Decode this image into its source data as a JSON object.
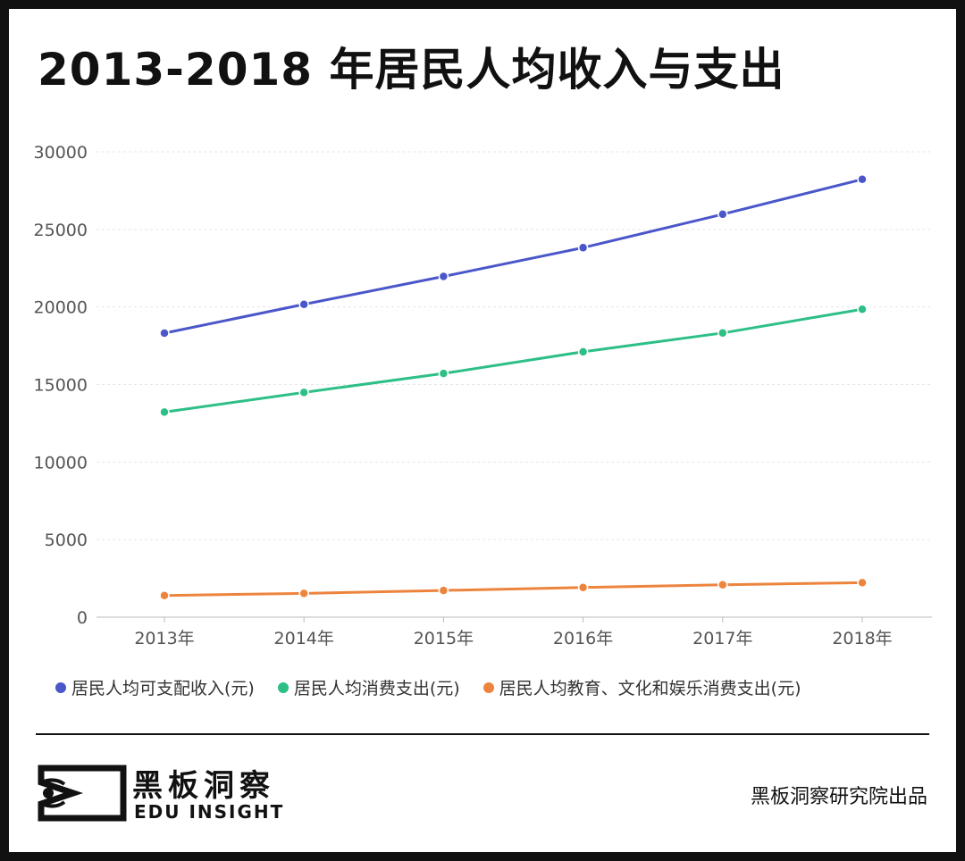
{
  "title": "2013-2018 年居民人均收入与支出",
  "chart_data": {
    "type": "line",
    "categories": [
      "2013年",
      "2014年",
      "2015年",
      "2016年",
      "2017年",
      "2018年"
    ],
    "series": [
      {
        "name": "居民人均可支配收入(元)",
        "color": "#4a56c9",
        "values": [
          18311,
          20167,
          21966,
          23821,
          25974,
          28228
        ]
      },
      {
        "name": "居民人均消费支出(元)",
        "color": "#2dbf86",
        "values": [
          13220,
          14491,
          15712,
          17111,
          18322,
          19853
        ]
      },
      {
        "name": "居民人均教育、文化和娱乐消费支出(元)",
        "color": "#ed843d",
        "values": [
          1398,
          1536,
          1723,
          1915,
          2086,
          2226
        ]
      }
    ],
    "yticks": [
      "0",
      "5000",
      "10000",
      "15000",
      "20000",
      "25000",
      "30000"
    ],
    "ylim": [
      0,
      30000
    ],
    "grid": true,
    "legend_position": "bottom"
  },
  "brand": {
    "name_cn": "黑板洞察",
    "name_en": "EDU INSIGHT",
    "credit": "黑板洞察研究院出品"
  }
}
